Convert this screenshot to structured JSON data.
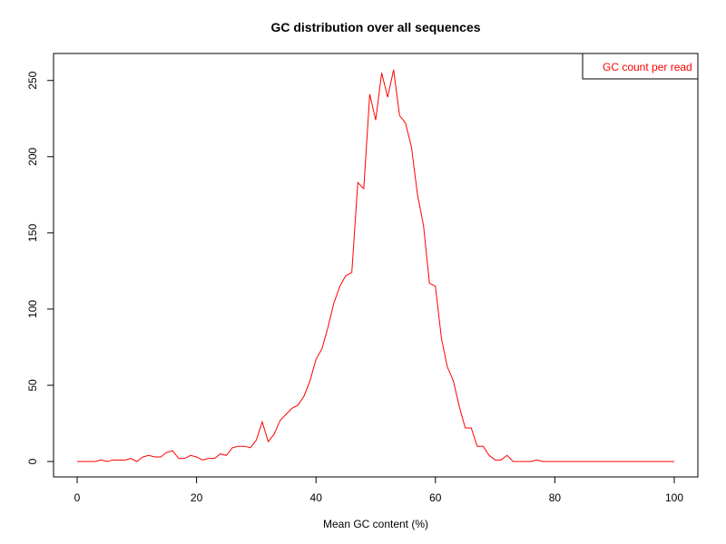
{
  "chart_data": {
    "type": "line",
    "title": "GC distribution over all sequences",
    "xlabel": "Mean GC content (%)",
    "ylabel": "",
    "xlim": [
      0,
      100
    ],
    "ylim": [
      0,
      257
    ],
    "xticks": [
      0,
      20,
      40,
      60,
      80,
      100
    ],
    "yticks": [
      0,
      50,
      100,
      150,
      200,
      250
    ],
    "grid": false,
    "legend_position": "top-right",
    "series": [
      {
        "name": "GC count per read",
        "color": "#ff0000",
        "x": [
          0,
          1,
          2,
          3,
          4,
          5,
          6,
          7,
          8,
          9,
          10,
          11,
          12,
          13,
          14,
          15,
          16,
          17,
          18,
          19,
          20,
          21,
          22,
          23,
          24,
          25,
          26,
          27,
          28,
          29,
          30,
          31,
          32,
          33,
          34,
          35,
          36,
          37,
          38,
          39,
          40,
          41,
          42,
          43,
          44,
          45,
          46,
          47,
          48,
          49,
          50,
          51,
          52,
          53,
          54,
          55,
          56,
          57,
          58,
          59,
          60,
          61,
          62,
          63,
          64,
          65,
          66,
          67,
          68,
          69,
          70,
          71,
          72,
          73,
          74,
          75,
          76,
          77,
          78,
          79,
          80,
          81,
          82,
          83,
          84,
          85,
          86,
          87,
          88,
          89,
          90,
          91,
          92,
          93,
          94,
          95,
          96,
          97,
          98,
          99,
          100
        ],
        "values": [
          0,
          0,
          0,
          0,
          1,
          0,
          1,
          1,
          1,
          2,
          0,
          3,
          4,
          3,
          3,
          6,
          7,
          2,
          2,
          4,
          3,
          1,
          2,
          2,
          5,
          4,
          9,
          10,
          10,
          9,
          14,
          26,
          13,
          18,
          27,
          31,
          35,
          37,
          43,
          53,
          67,
          74,
          88,
          104,
          115,
          122,
          124,
          183,
          179,
          241,
          224,
          255,
          239,
          257,
          227,
          222,
          206,
          175,
          155,
          117,
          115,
          81,
          62,
          53,
          36,
          22,
          22,
          10,
          10,
          4,
          1,
          1,
          4,
          0,
          0,
          0,
          0,
          1,
          0,
          0,
          0,
          0,
          0,
          0,
          0,
          0,
          0,
          0,
          0,
          0,
          0,
          0,
          0,
          0,
          0,
          0,
          0,
          0,
          0,
          0,
          0
        ]
      }
    ]
  }
}
